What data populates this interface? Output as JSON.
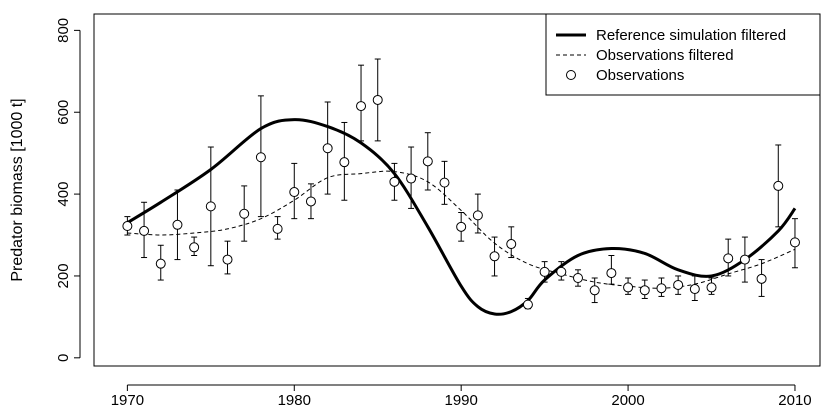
{
  "chart_data": {
    "type": "line",
    "title": "",
    "xlabel": "",
    "ylabel": "Predator biomass [1000 t]",
    "xlim": [
      1968,
      2011.5
    ],
    "ylim": [
      -20,
      840
    ],
    "xticks": [
      1970,
      1980,
      1990,
      2000,
      2010
    ],
    "yticks": [
      0,
      200,
      400,
      600,
      800
    ],
    "legend": {
      "position": "top-right",
      "entries": [
        {
          "label": "Reference simulation filtered",
          "style": "thick-solid"
        },
        {
          "label": "Observations filtered",
          "style": "dashed"
        },
        {
          "label": "Observations",
          "style": "open-circle"
        }
      ]
    },
    "series": [
      {
        "name": "Reference simulation filtered",
        "x": [
          1970,
          1972,
          1975,
          1978,
          1980,
          1982,
          1984,
          1986,
          1988,
          1990,
          1991,
          1992,
          1993,
          1994,
          1995,
          1997,
          1999,
          2001,
          2003,
          2005,
          2007,
          2009,
          2010
        ],
        "y": [
          330,
          380,
          460,
          560,
          582,
          565,
          525,
          450,
          320,
          175,
          125,
          107,
          113,
          140,
          190,
          250,
          267,
          255,
          215,
          200,
          240,
          310,
          365
        ]
      },
      {
        "name": "Observations filtered",
        "x": [
          1970,
          1972,
          1974,
          1976,
          1978,
          1980,
          1982,
          1984,
          1986,
          1988,
          1990,
          1992,
          1994,
          1996,
          1998,
          2000,
          2002,
          2004,
          2006,
          2008,
          2010
        ],
        "y": [
          305,
          300,
          305,
          315,
          340,
          385,
          440,
          450,
          455,
          430,
          360,
          280,
          230,
          205,
          185,
          175,
          170,
          180,
          205,
          230,
          265
        ]
      },
      {
        "name": "Observations",
        "x": [
          1970,
          1971,
          1972,
          1973,
          1974,
          1975,
          1976,
          1977,
          1978,
          1979,
          1980,
          1981,
          1982,
          1983,
          1984,
          1985,
          1986,
          1987,
          1988,
          1989,
          1990,
          1991,
          1992,
          1993,
          1994,
          1995,
          1996,
          1997,
          1998,
          1999,
          2000,
          2001,
          2002,
          2003,
          2004,
          2005,
          2006,
          2007,
          2008,
          2009,
          2010
        ],
        "y": [
          322,
          310,
          230,
          325,
          270,
          370,
          240,
          352,
          490,
          315,
          405,
          382,
          512,
          478,
          615,
          630,
          430,
          438,
          480,
          428,
          320,
          348,
          248,
          278,
          130,
          210,
          210,
          195,
          165,
          207,
          172,
          165,
          170,
          178,
          168,
          172,
          243,
          240,
          193,
          420,
          282
        ],
        "lower": [
          300,
          245,
          190,
          240,
          250,
          225,
          205,
          285,
          345,
          290,
          340,
          340,
          400,
          385,
          530,
          530,
          385,
          365,
          410,
          375,
          285,
          305,
          200,
          245,
          120,
          185,
          190,
          175,
          135,
          180,
          155,
          145,
          150,
          155,
          140,
          155,
          200,
          185,
          150,
          320,
          220
        ],
        "upper": [
          345,
          380,
          275,
          410,
          295,
          515,
          285,
          420,
          640,
          345,
          475,
          425,
          625,
          575,
          715,
          730,
          475,
          515,
          550,
          480,
          355,
          400,
          295,
          320,
          145,
          235,
          235,
          215,
          195,
          250,
          195,
          190,
          195,
          200,
          200,
          195,
          290,
          295,
          240,
          520,
          340
        ]
      }
    ]
  }
}
